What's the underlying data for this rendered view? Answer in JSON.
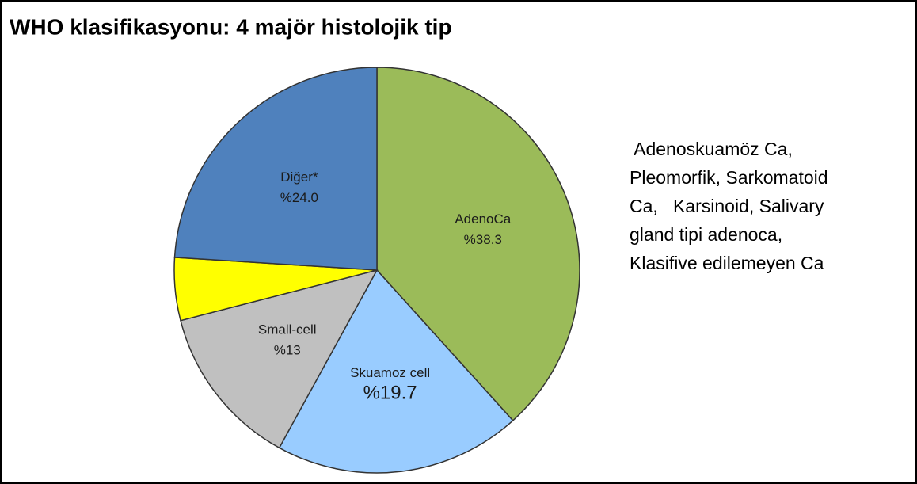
{
  "chart_data": {
    "type": "pie",
    "title": "WHO klasifikasyonu: 4 majör histolojik tip",
    "categories": [
      "AdenoCa",
      "Skuamoz cell",
      "Small-cell",
      null,
      "Diğer*"
    ],
    "values": [
      38.3,
      19.7,
      13,
      5,
      24
    ],
    "value_labels": [
      "%38.3",
      "%19.7",
      "%13",
      null,
      "%24.0"
    ],
    "colors": [
      "#9bbb59",
      "#99ccff",
      "#c0c0c0",
      "#ffff00",
      "#4f81bd"
    ],
    "annotation_lines": [
      " Adenoskuamöz Ca,",
      "Pleomorfik, Sarkomatoid",
      "Ca,   Karsinoid, Salivary",
      "gland tipi adenoca,",
      "Klasifive edilemeyen Ca"
    ]
  }
}
